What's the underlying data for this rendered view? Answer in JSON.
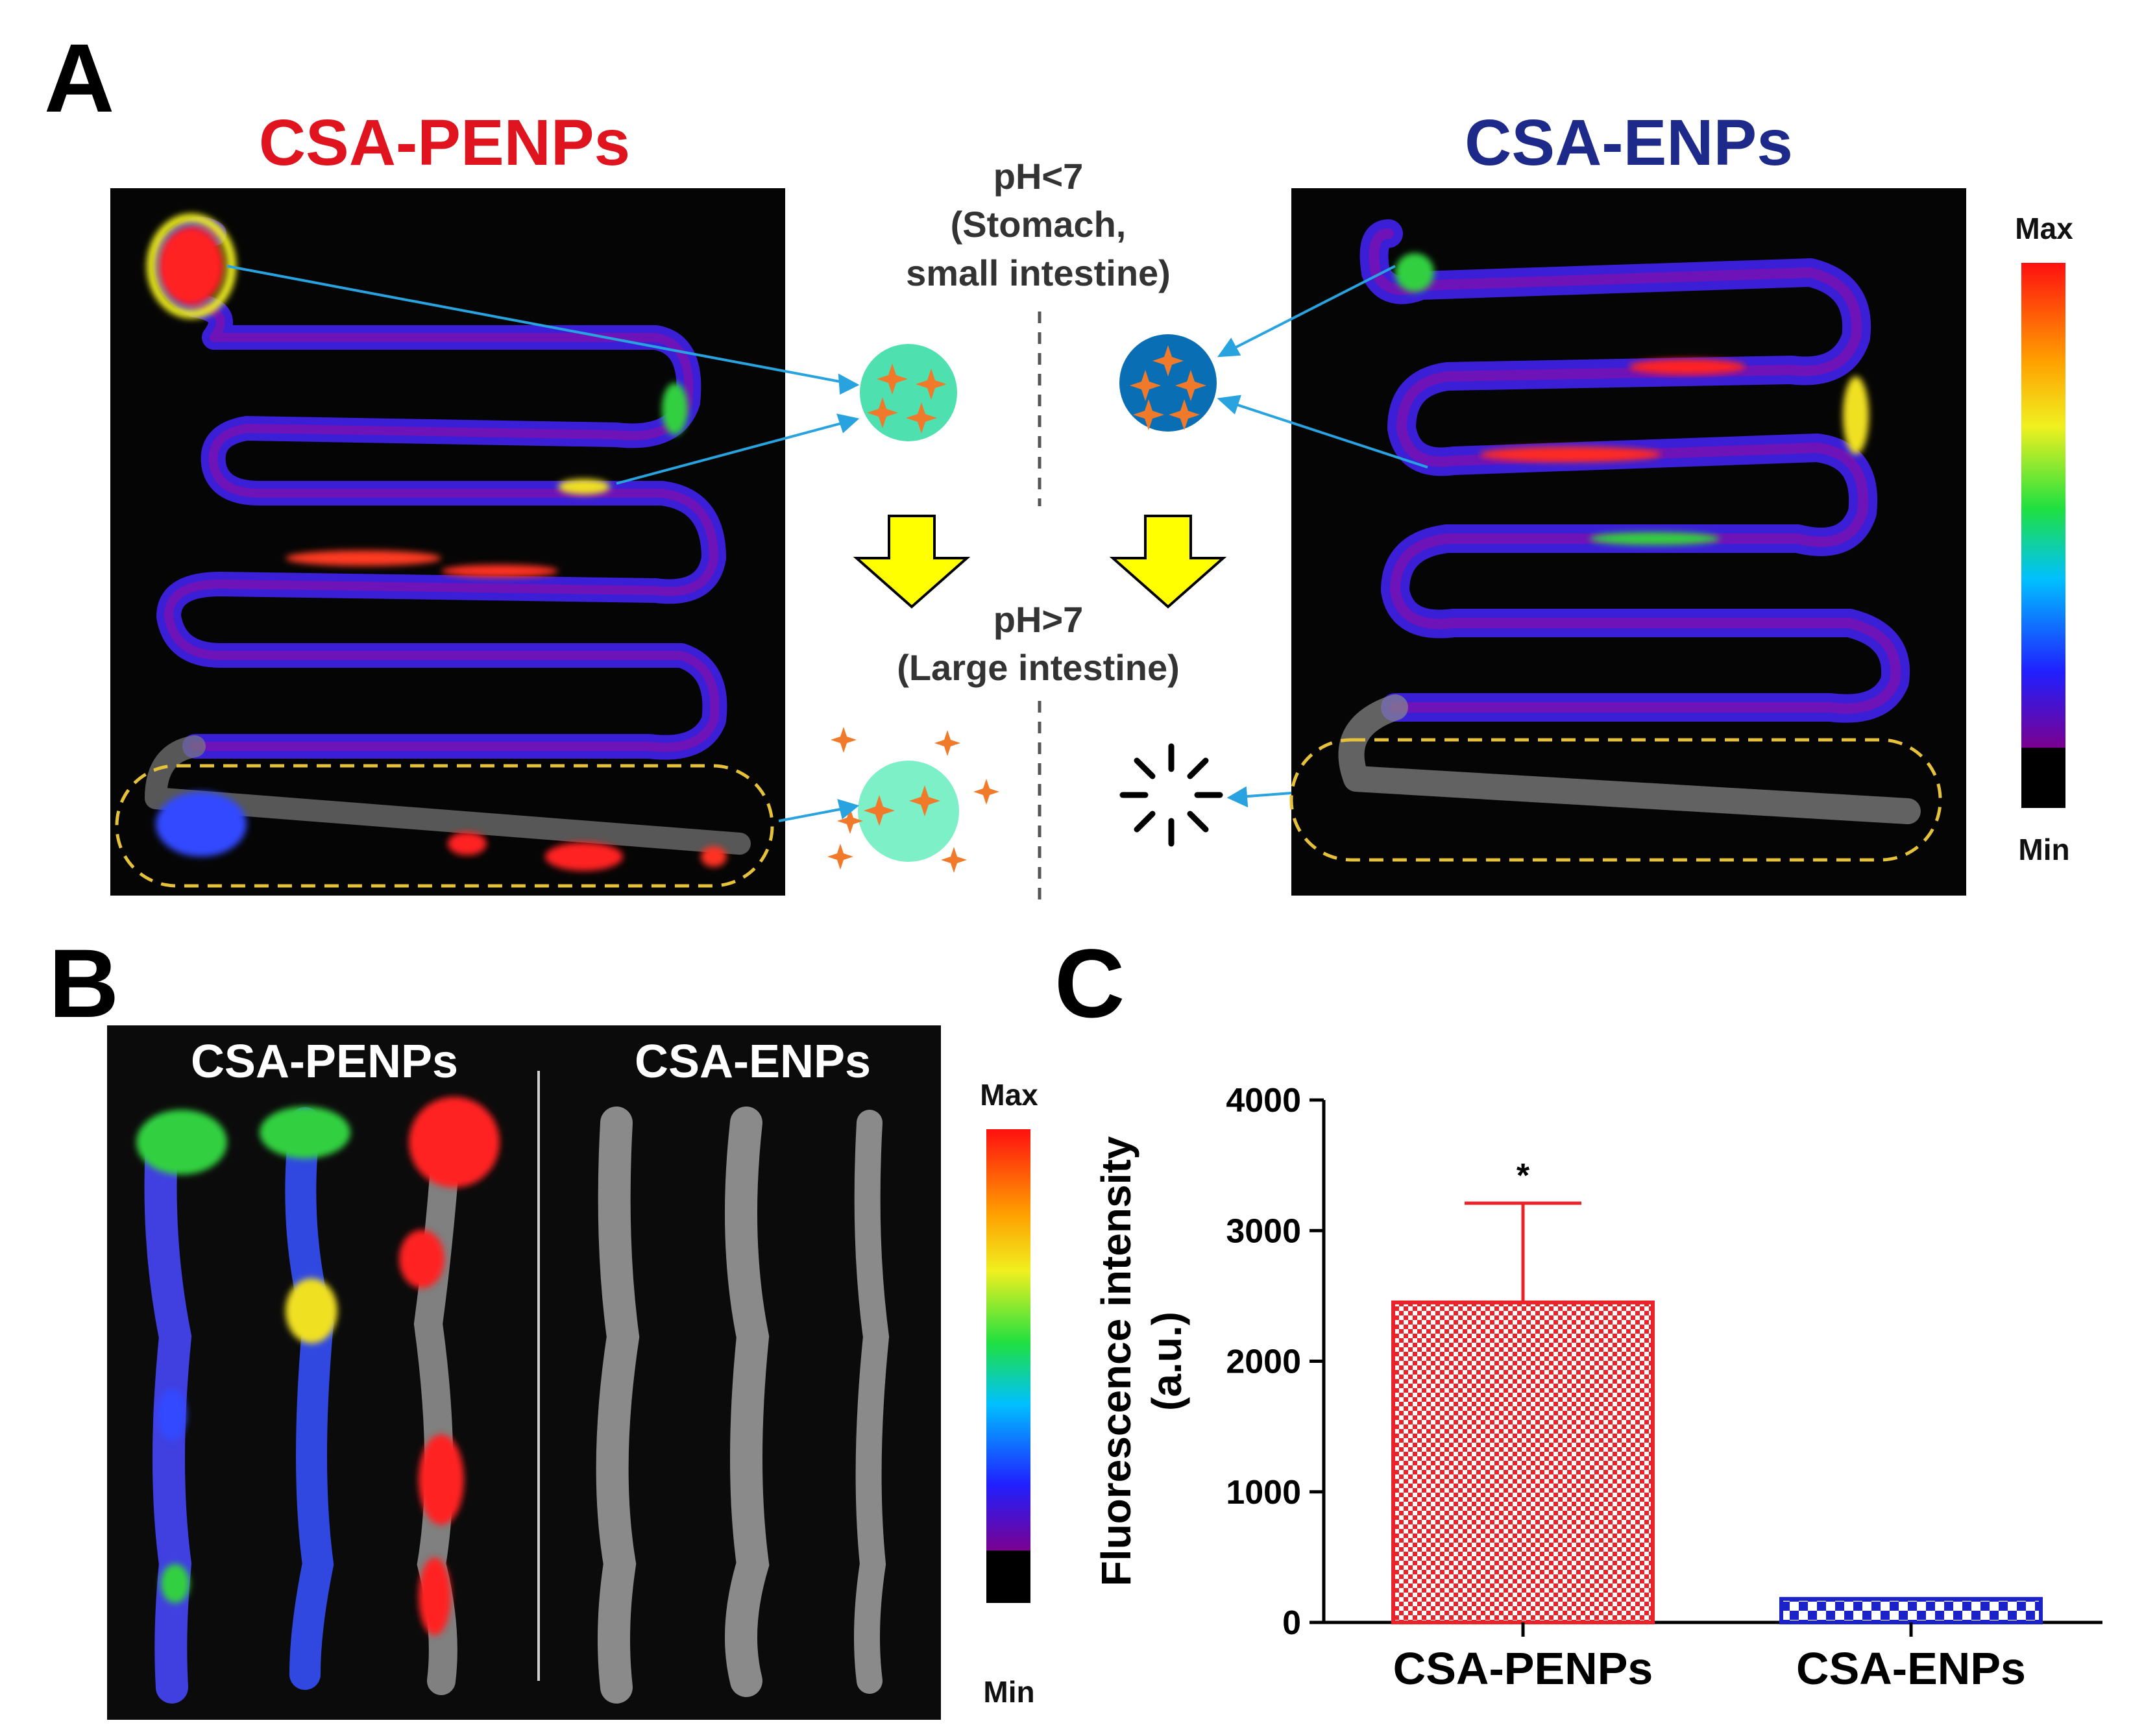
{
  "panelA": {
    "letter": "A",
    "left_title": "CSA-PENPs",
    "right_title": "CSA-ENPs",
    "left_title_color": "#e0141e",
    "right_title_color": "#1d2a8a",
    "acid_label_line1": "pH<7",
    "acid_label_line2": "(Stomach,",
    "acid_label_line3": "small intestine)",
    "basic_label_line1": "pH>7",
    "basic_label_line2": "(Large intestine)",
    "colorbar_max": "Max",
    "colorbar_min": "Min",
    "intact_particle_color": "#4fe0b0",
    "released_particle_color": "#7df0c8",
    "enp_particle_color": "#0a6eb4",
    "drug_marker_color": "#f07a2a",
    "arrow_color": "#ffff00",
    "pointer_color": "#29a3e0",
    "region_outline_color": "#e6c23a"
  },
  "panelB": {
    "letter": "B",
    "left_label": "CSA-PENPs",
    "right_label": "CSA-ENPs",
    "colorbar_max": "Max",
    "colorbar_min": "Min"
  },
  "panelC": {
    "letter": "C"
  },
  "chart_data": {
    "type": "bar",
    "categories": [
      "CSA-PENPs",
      "CSA-ENPs"
    ],
    "values": [
      2450,
      180
    ],
    "error_upper": [
      3210,
      null
    ],
    "significance": [
      "*",
      ""
    ],
    "ylabel_line1": "Fluorescence intensity",
    "ylabel_line2": "(a.u.)",
    "ylim": [
      0,
      4000
    ],
    "yticks": [
      0,
      1000,
      2000,
      3000,
      4000
    ],
    "ytick_labels": [
      "0",
      "1000",
      "2000",
      "3000",
      "4000"
    ],
    "bar_colors": [
      "#e8242a",
      "#1a22c8"
    ],
    "bar_patterns": [
      "red-checker",
      "blue-checker"
    ],
    "grid": false,
    "legend": "none"
  }
}
